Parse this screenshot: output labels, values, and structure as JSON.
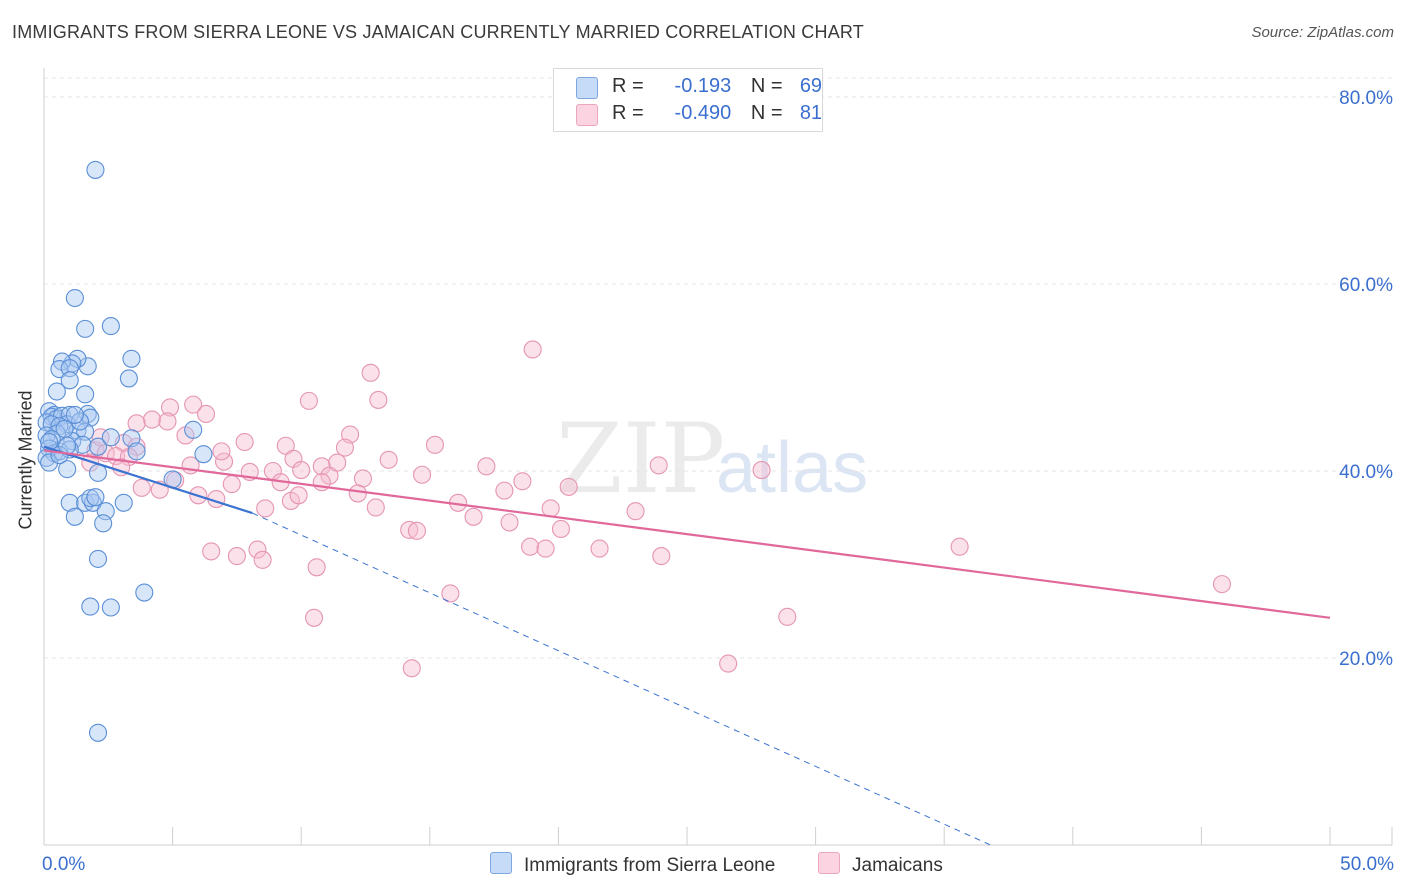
{
  "header": {
    "title": "IMMIGRANTS FROM SIERRA LEONE VS JAMAICAN CURRENTLY MARRIED CORRELATION CHART",
    "source": "Source: ZipAtlas.com"
  },
  "watermark": {
    "part1": "ZIP",
    "part2": "atlas"
  },
  "legend": {
    "rows": [
      {
        "r_label": "R =",
        "r_value": "-0.193",
        "n_label": "N =",
        "n_value": "69",
        "color": "#a9c8f2"
      },
      {
        "r_label": "R =",
        "r_value": "-0.490",
        "n_label": "N =",
        "n_value": "81",
        "color": "#f6bcd0"
      }
    ]
  },
  "bottom_legend": {
    "series1": "Immigrants from Sierra Leone",
    "series2": "Jamaicans"
  },
  "colors": {
    "blue_fill": "#a9c8f2",
    "blue_stroke": "#5b8fd6",
    "blue_line": "#3a73d0",
    "pink_fill": "#f6bcd0",
    "pink_stroke": "#e595b3",
    "pink_line": "#e0689a",
    "tick_label": "#3b6fcf"
  },
  "chart_data": {
    "type": "scatter",
    "title": "IMMIGRANTS FROM SIERRA LEONE VS JAMAICAN CURRENTLY MARRIED CORRELATION CHART",
    "xlabel": "",
    "ylabel": "Currently Married",
    "xlim": [
      0,
      50
    ],
    "ylim": [
      0,
      83
    ],
    "x_tick_labels": [
      "0.0%",
      "50.0%"
    ],
    "y_ticks": [
      20,
      40,
      60,
      80
    ],
    "y_tick_labels": [
      "20.0%",
      "40.0%",
      "60.0%",
      "80.0%"
    ],
    "grid": true,
    "series": [
      {
        "name": "Immigrants from Sierra Leone",
        "r": -0.193,
        "n": 69,
        "trend": {
          "x0": 0,
          "y0": 42.6,
          "x1": 8.1,
          "y1": 35.5,
          "dash_to_x": 36.8,
          "dash_to_y": 0
        },
        "points": [
          [
            2.0,
            72.2
          ],
          [
            1.2,
            58.5
          ],
          [
            2.6,
            55.5
          ],
          [
            1.6,
            55.2
          ],
          [
            1.7,
            51.2
          ],
          [
            1.3,
            52.0
          ],
          [
            1.1,
            51.5
          ],
          [
            0.7,
            51.7
          ],
          [
            0.6,
            50.9
          ],
          [
            1.0,
            51.0
          ],
          [
            3.4,
            52.0
          ],
          [
            3.3,
            49.9
          ],
          [
            1.0,
            49.7
          ],
          [
            0.5,
            48.5
          ],
          [
            1.6,
            48.2
          ],
          [
            0.2,
            46.4
          ],
          [
            0.4,
            46.0
          ],
          [
            0.3,
            45.8
          ],
          [
            0.5,
            45.6
          ],
          [
            0.7,
            45.9
          ],
          [
            0.1,
            45.2
          ],
          [
            0.3,
            45.0
          ],
          [
            1.7,
            46.1
          ],
          [
            1.8,
            45.7
          ],
          [
            1.0,
            46.0
          ],
          [
            0.9,
            45.0
          ],
          [
            0.6,
            44.8
          ],
          [
            1.3,
            44.3
          ],
          [
            1.6,
            44.2
          ],
          [
            0.5,
            44.0
          ],
          [
            0.1,
            43.8
          ],
          [
            0.3,
            43.4
          ],
          [
            1.1,
            43.2
          ],
          [
            1.5,
            42.8
          ],
          [
            2.1,
            42.6
          ],
          [
            3.4,
            43.5
          ],
          [
            0.2,
            42.4
          ],
          [
            0.4,
            41.9
          ],
          [
            0.6,
            42.1
          ],
          [
            1.0,
            42.3
          ],
          [
            0.1,
            41.4
          ],
          [
            0.2,
            40.9
          ],
          [
            0.9,
            40.2
          ],
          [
            2.1,
            39.8
          ],
          [
            3.6,
            42.1
          ],
          [
            5.8,
            44.4
          ],
          [
            6.2,
            41.8
          ],
          [
            5.0,
            39.1
          ],
          [
            1.0,
            36.6
          ],
          [
            1.6,
            36.6
          ],
          [
            1.9,
            36.6
          ],
          [
            1.8,
            37.1
          ],
          [
            2.0,
            37.2
          ],
          [
            3.1,
            36.6
          ],
          [
            1.2,
            35.1
          ],
          [
            2.4,
            35.7
          ],
          [
            2.3,
            34.4
          ],
          [
            2.1,
            30.6
          ],
          [
            3.9,
            27.0
          ],
          [
            1.8,
            25.5
          ],
          [
            2.6,
            25.4
          ],
          [
            2.1,
            12.0
          ],
          [
            0.8,
            44.5
          ],
          [
            1.4,
            45.3
          ],
          [
            0.2,
            43.1
          ],
          [
            0.6,
            41.7
          ],
          [
            1.2,
            46.0
          ],
          [
            2.6,
            43.6
          ],
          [
            0.9,
            42.7
          ]
        ]
      },
      {
        "name": "Jamaicans",
        "r": -0.49,
        "n": 81,
        "trend": {
          "x0": 0,
          "y0": 42.2,
          "x1": 50,
          "y1": 24.3
        },
        "points": [
          [
            19.0,
            53.0
          ],
          [
            12.7,
            50.5
          ],
          [
            10.3,
            47.5
          ],
          [
            13.0,
            47.6
          ],
          [
            5.8,
            47.1
          ],
          [
            4.9,
            46.8
          ],
          [
            6.3,
            46.1
          ],
          [
            4.2,
            45.5
          ],
          [
            3.6,
            45.1
          ],
          [
            11.9,
            43.9
          ],
          [
            5.5,
            43.8
          ],
          [
            7.8,
            43.1
          ],
          [
            3.1,
            43.0
          ],
          [
            3.6,
            42.6
          ],
          [
            9.4,
            42.7
          ],
          [
            11.7,
            42.5
          ],
          [
            2.0,
            42.2
          ],
          [
            2.4,
            41.9
          ],
          [
            2.8,
            41.6
          ],
          [
            3.3,
            41.5
          ],
          [
            9.7,
            41.3
          ],
          [
            7.0,
            41.0
          ],
          [
            1.8,
            40.9
          ],
          [
            5.7,
            40.6
          ],
          [
            8.9,
            40.0
          ],
          [
            10.0,
            40.1
          ],
          [
            10.8,
            40.5
          ],
          [
            14.7,
            39.6
          ],
          [
            17.2,
            40.5
          ],
          [
            23.9,
            40.6
          ],
          [
            27.9,
            40.1
          ],
          [
            11.1,
            39.5
          ],
          [
            12.4,
            39.2
          ],
          [
            10.8,
            38.8
          ],
          [
            9.2,
            38.8
          ],
          [
            5.1,
            39.0
          ],
          [
            4.5,
            38.0
          ],
          [
            3.8,
            38.2
          ],
          [
            6.0,
            37.4
          ],
          [
            6.7,
            37.0
          ],
          [
            9.6,
            36.8
          ],
          [
            12.2,
            37.6
          ],
          [
            16.1,
            36.6
          ],
          [
            17.9,
            37.9
          ],
          [
            8.6,
            36.0
          ],
          [
            19.7,
            36.0
          ],
          [
            23.0,
            35.7
          ],
          [
            18.1,
            34.5
          ],
          [
            14.2,
            33.7
          ],
          [
            14.5,
            33.6
          ],
          [
            20.1,
            33.8
          ],
          [
            18.9,
            31.9
          ],
          [
            19.5,
            31.7
          ],
          [
            21.6,
            31.7
          ],
          [
            24.0,
            30.9
          ],
          [
            6.5,
            31.4
          ],
          [
            7.5,
            30.9
          ],
          [
            8.3,
            31.6
          ],
          [
            8.5,
            30.5
          ],
          [
            10.6,
            29.7
          ],
          [
            35.6,
            31.9
          ],
          [
            45.8,
            27.9
          ],
          [
            15.8,
            26.9
          ],
          [
            10.5,
            24.3
          ],
          [
            28.9,
            24.4
          ],
          [
            14.3,
            18.9
          ],
          [
            26.6,
            19.4
          ],
          [
            4.8,
            45.3
          ],
          [
            6.9,
            42.1
          ],
          [
            3.0,
            40.4
          ],
          [
            2.2,
            43.6
          ],
          [
            13.4,
            41.2
          ],
          [
            15.2,
            42.8
          ],
          [
            7.3,
            38.6
          ],
          [
            16.7,
            35.1
          ],
          [
            20.4,
            38.3
          ],
          [
            8.0,
            39.9
          ],
          [
            12.9,
            36.1
          ],
          [
            18.6,
            38.9
          ],
          [
            11.4,
            40.9
          ],
          [
            9.9,
            37.4
          ]
        ]
      }
    ]
  }
}
